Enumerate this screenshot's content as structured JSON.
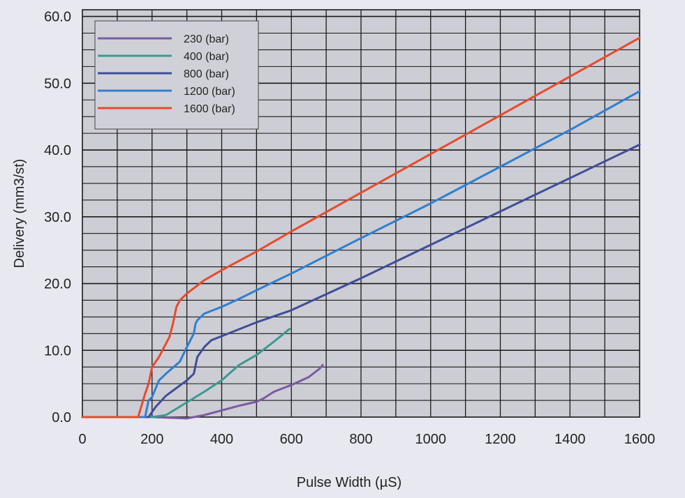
{
  "chart_data": {
    "type": "line",
    "xlabel": "Pulse Width (µS)",
    "ylabel": "Delivery (mm3/st)",
    "xlim": [
      0,
      1600
    ],
    "ylim": [
      0,
      61
    ],
    "x_ticks": [
      0,
      200,
      400,
      600,
      800,
      1000,
      1200,
      1400,
      1600
    ],
    "x_tick_labels": [
      "0",
      "200",
      "400",
      "600",
      "800",
      "1000",
      "1200",
      "1400",
      "1600"
    ],
    "y_ticks": [
      0,
      10,
      20,
      30,
      40,
      50,
      60
    ],
    "y_tick_labels": [
      "0.0",
      "10.0",
      "20.0",
      "30.0",
      "40.0",
      "50.0",
      "60.0"
    ],
    "grid": true,
    "legend_position": "top-left",
    "background": "#cdcdd5",
    "series": [
      {
        "name": "230 (bar)",
        "color": "#7a5aa0",
        "x": [
          0,
          200,
          300,
          350,
          400,
          450,
          500,
          520,
          550,
          600,
          650,
          680,
          690
        ],
        "y": [
          0,
          0,
          -0.2,
          0.3,
          1.0,
          1.7,
          2.3,
          2.8,
          3.8,
          4.8,
          6.0,
          7.2,
          7.8
        ]
      },
      {
        "name": "400 (bar)",
        "color": "#3a9a8e",
        "x": [
          0,
          200,
          240,
          300,
          350,
          400,
          450,
          500,
          550,
          595
        ],
        "y": [
          0,
          0,
          0.3,
          2.2,
          3.8,
          5.5,
          7.8,
          9.3,
          11.3,
          13.2
        ]
      },
      {
        "name": "800 (bar)",
        "color": "#3e4e98",
        "x": [
          0,
          190,
          210,
          240,
          300,
          320,
          330,
          350,
          370,
          500,
          600,
          800,
          1000,
          1200,
          1400,
          1600
        ],
        "y": [
          0,
          0,
          1.5,
          3.2,
          5.5,
          6.5,
          9.0,
          10.5,
          11.5,
          14.2,
          16.0,
          20.8,
          25.8,
          30.8,
          35.8,
          40.8
        ]
      },
      {
        "name": "1200 (bar)",
        "color": "#2f7fd0",
        "x": [
          0,
          180,
          190,
          200,
          220,
          240,
          280,
          300,
          320,
          325,
          330,
          350,
          400,
          450,
          500,
          600,
          800,
          1000,
          1200,
          1400,
          1600
        ],
        "y": [
          0,
          0,
          2.5,
          3.0,
          5.5,
          6.5,
          8.3,
          10.5,
          12.5,
          14.0,
          14.5,
          15.5,
          16.5,
          17.7,
          19.0,
          21.5,
          26.8,
          32.0,
          37.5,
          43.0,
          48.8
        ]
      },
      {
        "name": "1600 (bar)",
        "color": "#e84a2a",
        "x": [
          0,
          160,
          180,
          190,
          200,
          220,
          250,
          260,
          270,
          280,
          300,
          350,
          400,
          500,
          600,
          800,
          1000,
          1200,
          1400,
          1600
        ],
        "y": [
          0,
          0,
          3.5,
          5.0,
          7.5,
          9.0,
          12.0,
          14.0,
          16.5,
          17.5,
          18.5,
          20.5,
          22.0,
          24.8,
          27.8,
          33.6,
          39.4,
          45.2,
          51.0,
          56.8
        ]
      }
    ]
  }
}
